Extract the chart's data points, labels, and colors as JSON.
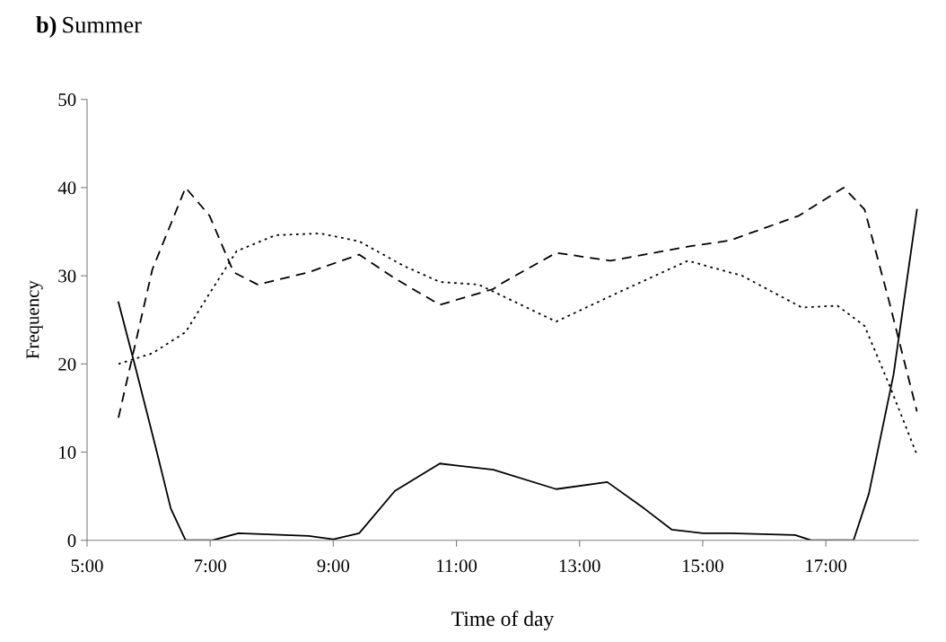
{
  "chart_data": {
    "type": "line",
    "title": "b) Summer",
    "xlabel": "Time of day",
    "ylabel": "Frequency",
    "xlim": [
      5,
      18.5
    ],
    "xticks": [
      {
        "value": 5,
        "label": "5:00"
      },
      {
        "value": 7,
        "label": "7:00"
      },
      {
        "value": 9,
        "label": "9:00"
      },
      {
        "value": 11,
        "label": "11:00"
      },
      {
        "value": 13,
        "label": "13:00"
      },
      {
        "value": 15,
        "label": "15:00"
      },
      {
        "value": 17,
        "label": "17:00"
      }
    ],
    "ylim": [
      0,
      50
    ],
    "yticks": [
      0,
      10,
      20,
      30,
      40,
      50
    ],
    "grid": false,
    "legend": false,
    "series": [
      {
        "color": "#000000",
        "line_style": "solid",
        "x": [
          5.51,
          5.79,
          6.12,
          6.36,
          6.6,
          7.04,
          7.46,
          8.6,
          9.0,
          9.42,
          10.0,
          10.73,
          11.6,
          12.62,
          13.45,
          14.05,
          14.5,
          15.0,
          15.44,
          16.5,
          16.76,
          17.45,
          17.7,
          18.1,
          18.48
        ],
        "values": [
          27.0,
          19.5,
          10.4,
          3.6,
          0,
          0,
          0.8,
          0.5,
          0.1,
          0.8,
          5.6,
          8.7,
          8.0,
          5.8,
          6.6,
          3.6,
          1.2,
          0.8,
          0.8,
          0.6,
          0,
          0,
          5.3,
          18.8,
          37.5
        ]
      },
      {
        "color": "#000000",
        "line_style": "dashed",
        "x": [
          5.51,
          6.06,
          6.6,
          6.99,
          7.38,
          7.77,
          8.6,
          9.42,
          10.0,
          10.73,
          11.6,
          11.75,
          12.62,
          13.5,
          14.76,
          15.44,
          16.56,
          17.29,
          17.63,
          18.02,
          18.48
        ],
        "values": [
          13.9,
          30.7,
          40.0,
          36.8,
          30.4,
          29.0,
          30.4,
          32.4,
          29.7,
          26.7,
          28.5,
          29.2,
          32.6,
          31.7,
          33.3,
          34.0,
          36.8,
          40.0,
          37.5,
          27.3,
          14.6
        ]
      },
      {
        "color": "#000000",
        "line_style": "dotted",
        "x": [
          5.51,
          6.06,
          6.6,
          6.99,
          7.43,
          8.06,
          8.79,
          9.42,
          10.15,
          10.73,
          11.36,
          11.9,
          12.62,
          13.69,
          14.76,
          15.64,
          16.61,
          17.19,
          17.63,
          18.02,
          18.48
        ],
        "values": [
          20.0,
          21.2,
          23.6,
          28.0,
          32.8,
          34.6,
          34.8,
          33.9,
          31.1,
          29.3,
          29.0,
          27.2,
          24.8,
          28.3,
          31.7,
          30.0,
          26.4,
          26.6,
          24.3,
          17.8,
          9.7
        ]
      }
    ]
  }
}
